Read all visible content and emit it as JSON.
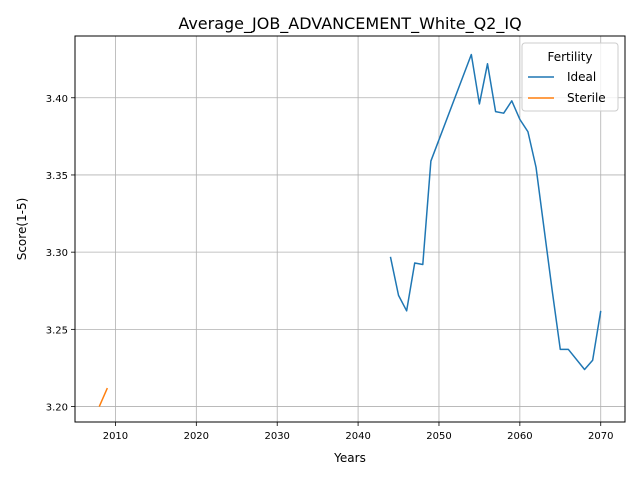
{
  "chart_data": {
    "type": "line",
    "title": "Average_JOB_ADVANCEMENT_White_Q2_IQ",
    "xlabel": "Years",
    "ylabel": "Score(1-5)",
    "xlim": [
      2005,
      2073
    ],
    "ylim": [
      3.19,
      3.44
    ],
    "xticks": [
      2010,
      2020,
      2030,
      2040,
      2050,
      2060,
      2070
    ],
    "yticks": [
      3.2,
      3.25,
      3.3,
      3.35,
      3.4
    ],
    "ytick_labels": [
      "3.20",
      "3.25",
      "3.30",
      "3.35",
      "3.40"
    ],
    "grid": true,
    "legend": {
      "title": "Fertility",
      "placement": "top-right"
    },
    "series": [
      {
        "name": "Ideal",
        "color": "#1f77b4",
        "x": [
          2044,
          2045,
          2046,
          2047,
          2048,
          2049,
          2054,
          2055,
          2056,
          2057,
          2058,
          2059,
          2060,
          2061,
          2062,
          2063,
          2064,
          2065,
          2066,
          2068,
          2069,
          2070
        ],
        "y": [
          3.297,
          3.272,
          3.262,
          3.293,
          3.292,
          3.359,
          3.428,
          3.396,
          3.422,
          3.391,
          3.39,
          3.398,
          3.386,
          3.378,
          3.355,
          3.315,
          3.275,
          3.237,
          3.237,
          3.224,
          3.23,
          3.262
        ]
      },
      {
        "name": "Sterile",
        "color": "#ff7f0e",
        "x": [
          2008,
          2009
        ],
        "y": [
          3.2,
          3.212
        ]
      }
    ]
  }
}
